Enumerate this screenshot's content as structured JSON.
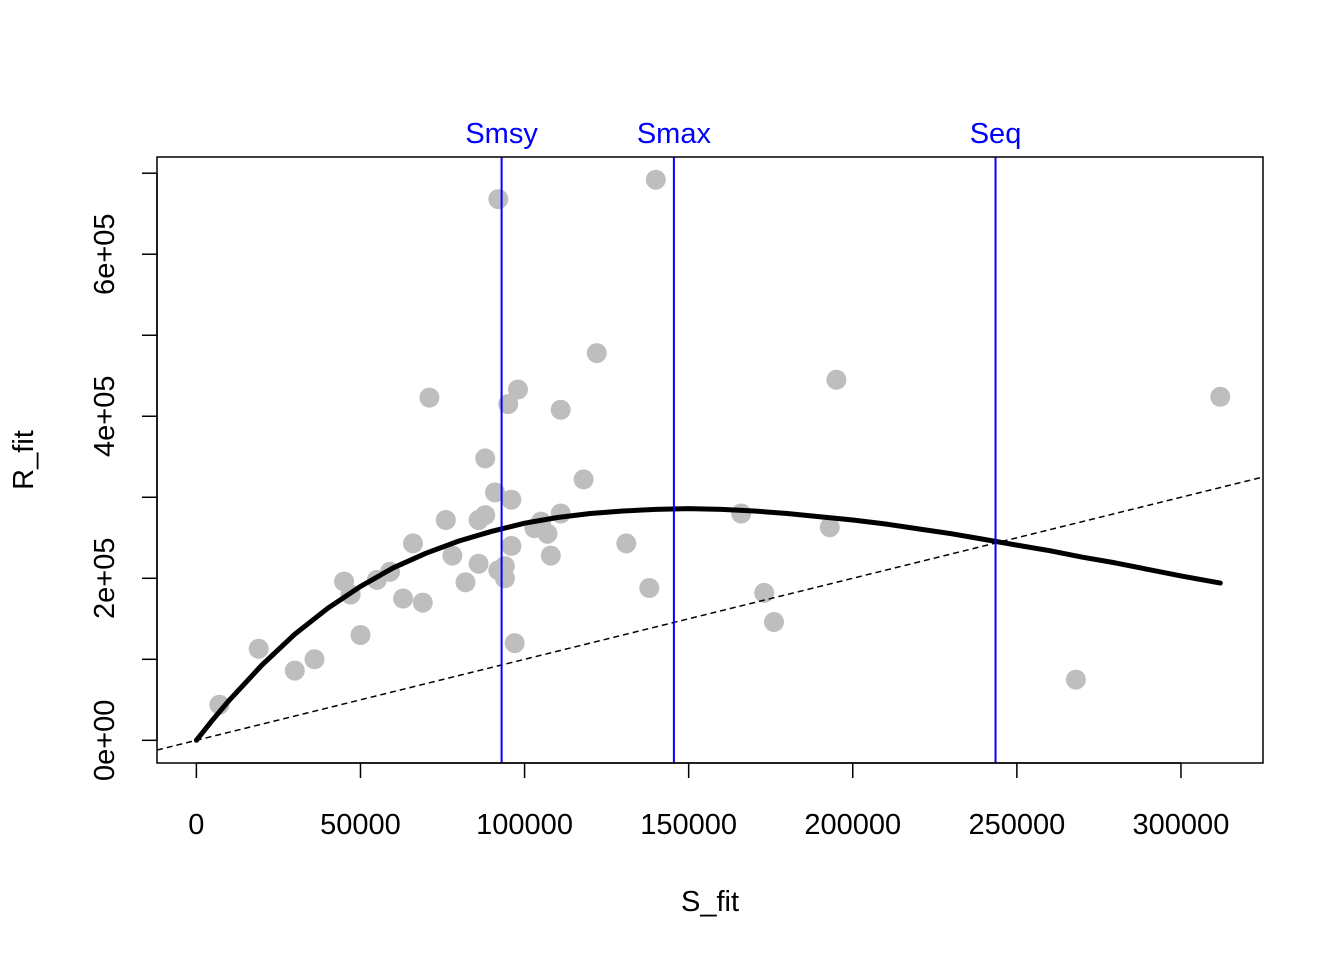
{
  "chart_data": {
    "type": "scatter",
    "xlabel": "S_fit",
    "ylabel": "R_fit",
    "xlim": [
      -12000,
      325000
    ],
    "ylim": [
      -28000,
      720000
    ],
    "x_ticks": [
      0,
      50000,
      100000,
      150000,
      200000,
      250000,
      300000
    ],
    "x_tick_labels": [
      "0",
      "50000",
      "100000",
      "150000",
      "200000",
      "250000",
      "300000"
    ],
    "y_ticks": [
      0,
      100000,
      200000,
      300000,
      400000,
      500000,
      600000,
      700000
    ],
    "y_tick_labels": [
      "0e+00",
      "",
      "2e+05",
      "",
      "4e+05",
      "",
      "6e+05",
      ""
    ],
    "grid": false,
    "points_color": "#bebebe",
    "points": [
      [
        7000,
        44000
      ],
      [
        19000,
        113000
      ],
      [
        30000,
        86000
      ],
      [
        36000,
        100000
      ],
      [
        45000,
        196000
      ],
      [
        47000,
        180000
      ],
      [
        50000,
        130000
      ],
      [
        55000,
        198000
      ],
      [
        59000,
        208000
      ],
      [
        63000,
        175000
      ],
      [
        66000,
        243000
      ],
      [
        69000,
        170000
      ],
      [
        71000,
        423000
      ],
      [
        76000,
        272000
      ],
      [
        78000,
        228000
      ],
      [
        82000,
        195000
      ],
      [
        86000,
        218000
      ],
      [
        86000,
        272000
      ],
      [
        88000,
        278000
      ],
      [
        88000,
        348000
      ],
      [
        91000,
        306000
      ],
      [
        92000,
        668000
      ],
      [
        92000,
        210000
      ],
      [
        94000,
        200000
      ],
      [
        94000,
        215000
      ],
      [
        95000,
        415000
      ],
      [
        96000,
        240000
      ],
      [
        96000,
        297000
      ],
      [
        97000,
        120000
      ],
      [
        98000,
        433000
      ],
      [
        103000,
        262000
      ],
      [
        105000,
        270000
      ],
      [
        107000,
        255000
      ],
      [
        108000,
        228000
      ],
      [
        111000,
        408000
      ],
      [
        111000,
        280000
      ],
      [
        118000,
        322000
      ],
      [
        122000,
        478000
      ],
      [
        131000,
        243000
      ],
      [
        138000,
        188000
      ],
      [
        140000,
        692000
      ],
      [
        166000,
        280000
      ],
      [
        173000,
        182000
      ],
      [
        176000,
        146000
      ],
      [
        193000,
        263000
      ],
      [
        195000,
        445000
      ],
      [
        268000,
        75000
      ],
      [
        312000,
        424000
      ]
    ],
    "fitted_curve": {
      "color": "#000000",
      "x": [
        0,
        5000,
        10000,
        20000,
        30000,
        40000,
        50000,
        60000,
        70000,
        80000,
        90000,
        100000,
        110000,
        120000,
        130000,
        140000,
        150000,
        160000,
        170000,
        180000,
        190000,
        200000,
        210000,
        220000,
        230000,
        240000,
        250000,
        260000,
        270000,
        280000,
        290000,
        300000,
        312000
      ],
      "y": [
        0,
        25500,
        49400,
        93000,
        131000,
        163000,
        190000,
        213000,
        231000,
        246000,
        258000,
        268000,
        275000,
        280000,
        283000,
        285000,
        286000,
        285000,
        283000,
        280000,
        276000,
        272000,
        267000,
        261000,
        255000,
        248000,
        241000,
        234000,
        226000,
        219000,
        211000,
        203000,
        194000
      ]
    },
    "replacement_line": {
      "slope": 1,
      "intercept": 0,
      "style": "dashed",
      "color": "#000000"
    },
    "reference_lines": [
      {
        "label": "Smsy",
        "x": 93000,
        "color": "#0000ff"
      },
      {
        "label": "Smax",
        "x": 145500,
        "color": "#0000ff"
      },
      {
        "label": "Seq",
        "x": 243500,
        "color": "#0000ff"
      }
    ]
  }
}
